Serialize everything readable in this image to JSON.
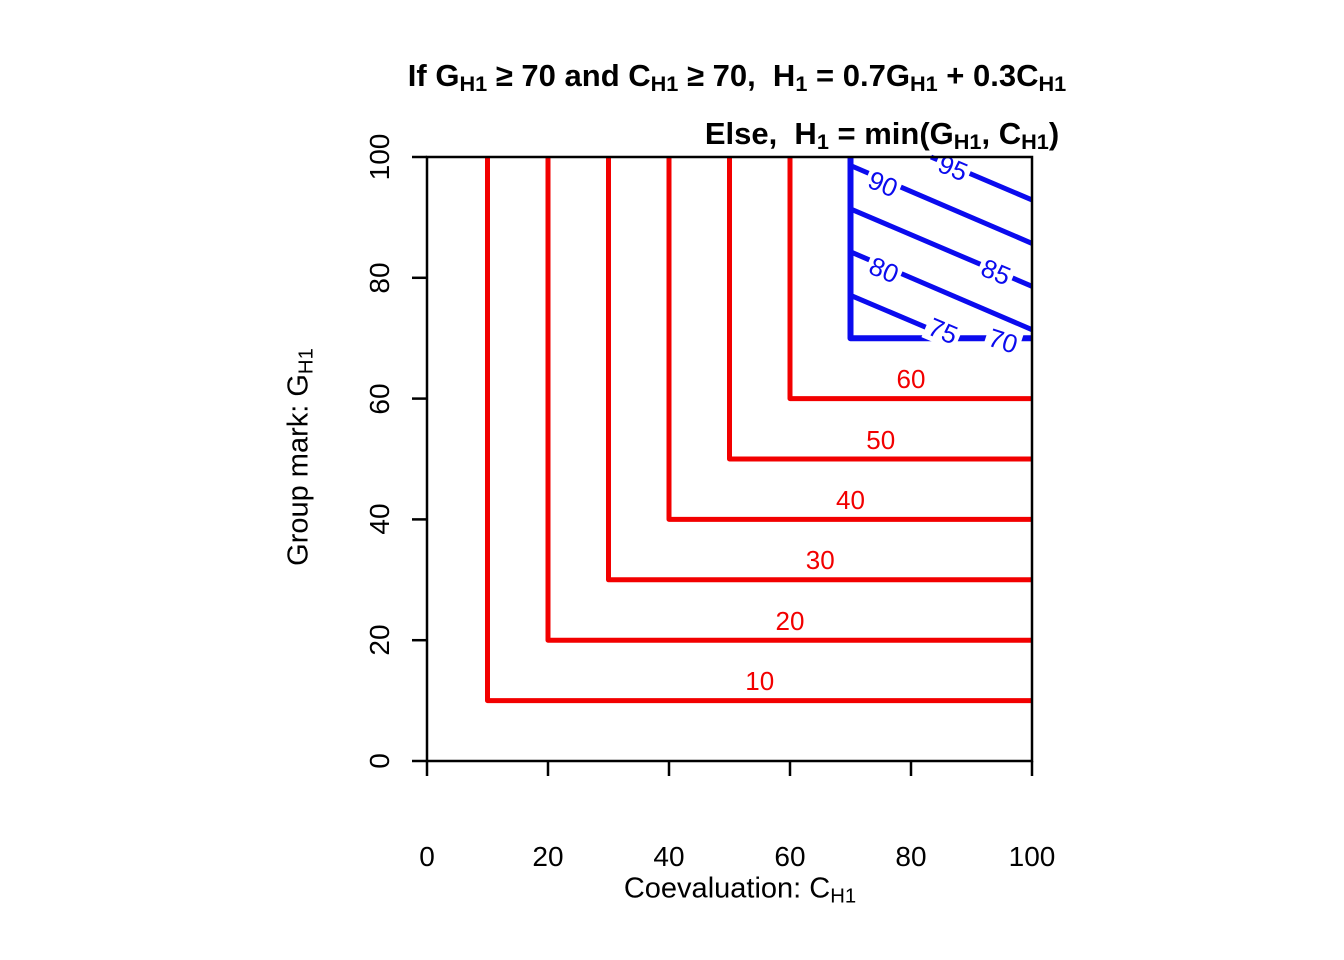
{
  "title": {
    "line1_segments": [
      {
        "t": "If G"
      },
      {
        "s": "H1"
      },
      {
        "t": " ≥ 70 and C"
      },
      {
        "s": "H1"
      },
      {
        "t": " ≥ 70,  H"
      },
      {
        "s": "1"
      },
      {
        "t": " = 0.7G"
      },
      {
        "s": "H1"
      },
      {
        "t": " + 0.3C"
      },
      {
        "s": "H1"
      }
    ],
    "line2_segments": [
      {
        "t": "Else,  H"
      },
      {
        "s": "1"
      },
      {
        "t": " = min(G"
      },
      {
        "s": "H1"
      },
      {
        "t": ", C"
      },
      {
        "s": "H1"
      },
      {
        "t": ")"
      }
    ]
  },
  "chart_data": {
    "type": "contour",
    "xlabel_segments": [
      {
        "t": "Coevaluation: C"
      },
      {
        "s": "H1"
      }
    ],
    "ylabel_segments": [
      {
        "t": "Group mark: G"
      },
      {
        "s": "H1"
      }
    ],
    "xlim": [
      0,
      100
    ],
    "ylim": [
      0,
      100
    ],
    "x_ticks": [
      0,
      20,
      40,
      60,
      80,
      100
    ],
    "y_ticks": [
      0,
      20,
      40,
      60,
      80,
      100
    ],
    "grid": false,
    "colors": {
      "low_region": "#f20000",
      "high_region": "#0b0bee",
      "frame": "#000000"
    },
    "function_rule": "H1 = 0.7*G_H1 + 0.3*C_H1 if G_H1>=70 and C_H1>=70, else H1 = min(G_H1, C_H1)",
    "contours": [
      {
        "level": 10,
        "color": "#f20000",
        "width": 5,
        "points": [
          [
            10,
            100
          ],
          [
            10,
            10
          ],
          [
            100,
            10
          ]
        ],
        "label": {
          "text": "10",
          "x": 55,
          "y": 13.2,
          "rot": 0,
          "halo": false
        }
      },
      {
        "level": 20,
        "color": "#f20000",
        "width": 5,
        "points": [
          [
            20,
            100
          ],
          [
            20,
            20
          ],
          [
            100,
            20
          ]
        ],
        "label": {
          "text": "20",
          "x": 60,
          "y": 23.2,
          "rot": 0,
          "halo": false
        }
      },
      {
        "level": 30,
        "color": "#f20000",
        "width": 5,
        "points": [
          [
            30,
            100
          ],
          [
            30,
            30
          ],
          [
            100,
            30
          ]
        ],
        "label": {
          "text": "30",
          "x": 65,
          "y": 33.2,
          "rot": 0,
          "halo": false
        }
      },
      {
        "level": 40,
        "color": "#f20000",
        "width": 5,
        "points": [
          [
            40,
            100
          ],
          [
            40,
            40
          ],
          [
            100,
            40
          ]
        ],
        "label": {
          "text": "40",
          "x": 70,
          "y": 43.2,
          "rot": 0,
          "halo": false
        }
      },
      {
        "level": 50,
        "color": "#f20000",
        "width": 5,
        "points": [
          [
            50,
            100
          ],
          [
            50,
            50
          ],
          [
            100,
            50
          ]
        ],
        "label": {
          "text": "50",
          "x": 75,
          "y": 53.2,
          "rot": 0,
          "halo": false
        }
      },
      {
        "level": 60,
        "color": "#f20000",
        "width": 5,
        "points": [
          [
            60,
            100
          ],
          [
            60,
            60
          ],
          [
            100,
            60
          ]
        ],
        "label": {
          "text": "60",
          "x": 80,
          "y": 63.2,
          "rot": 0,
          "halo": false
        }
      },
      {
        "level": 70,
        "color": "#0b0bee",
        "width": 6,
        "points": [
          [
            70,
            100
          ],
          [
            70,
            70
          ],
          [
            100,
            70
          ]
        ],
        "label": {
          "text": "70",
          "x": 95.2,
          "y": 69.6,
          "rot": 18,
          "halo": true
        }
      },
      {
        "level": 75,
        "color": "#0b0bee",
        "width": 5,
        "points": [
          [
            70,
            77.1
          ],
          [
            86.7,
            70
          ]
        ],
        "label": {
          "text": "75",
          "x": 85.3,
          "y": 71.2,
          "rot": 23,
          "halo": true
        }
      },
      {
        "level": 80,
        "color": "#0b0bee",
        "width": 5,
        "points": [
          [
            70,
            84.3
          ],
          [
            100,
            71.4
          ]
        ],
        "label": {
          "text": "80",
          "x": 75.5,
          "y": 81.3,
          "rot": 23,
          "halo": true
        }
      },
      {
        "level": 85,
        "color": "#0b0bee",
        "width": 5,
        "points": [
          [
            70,
            91.4
          ],
          [
            100,
            78.6
          ]
        ],
        "label": {
          "text": "85",
          "x": 94.0,
          "y": 81.0,
          "rot": 23,
          "halo": true
        }
      },
      {
        "level": 90,
        "color": "#0b0bee",
        "width": 5,
        "points": [
          [
            70,
            98.6
          ],
          [
            100,
            85.7
          ]
        ],
        "label": {
          "text": "90",
          "x": 75.3,
          "y": 95.6,
          "rot": 23,
          "halo": true
        }
      },
      {
        "level": 95,
        "color": "#0b0bee",
        "width": 5,
        "points": [
          [
            83.3,
            100
          ],
          [
            100,
            92.9
          ]
        ],
        "label": {
          "text": "95",
          "x": 87.0,
          "y": 98.2,
          "rot": 23,
          "halo": true
        }
      }
    ]
  }
}
